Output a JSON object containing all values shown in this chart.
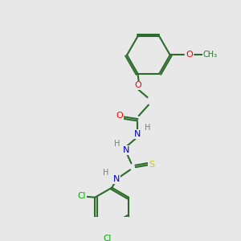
{
  "bg_color": "#e8e8e8",
  "bond_color": "#2d6b2d",
  "atom_colors": {
    "O": "#ff0000",
    "N": "#0000cc",
    "S": "#cccc00",
    "Cl": "#00aa00",
    "C": "#2d6b2d",
    "H": "#6a8a6a"
  }
}
